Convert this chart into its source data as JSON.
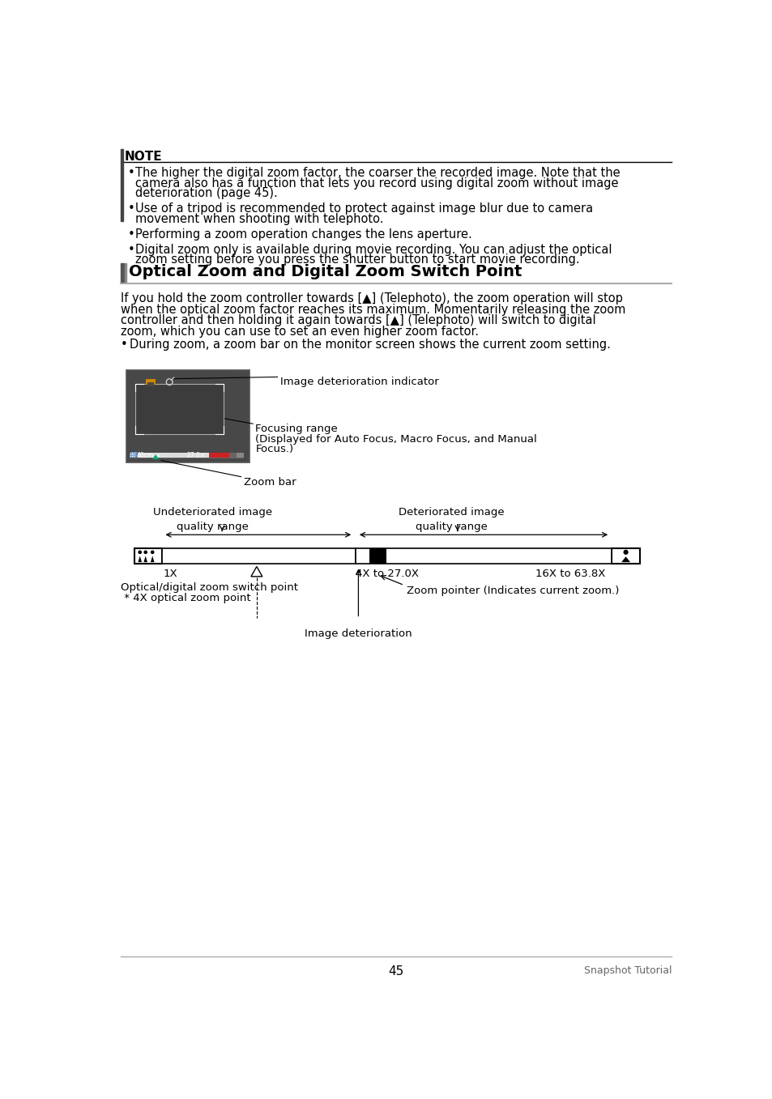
{
  "page_bg": "#ffffff",
  "note_bar_color": "#555555",
  "note_title": "NOTE",
  "note_bullets": [
    "The higher the digital zoom factor, the coarser the recorded image. Note that the camera also has a function that lets you record using digital zoom without image deterioration (page 45).",
    "Use of a tripod is recommended to protect against image blur due to camera movement when shooting with telephoto.",
    "Performing a zoom operation changes the lens aperture.",
    "Digital zoom only is available during movie recording. You can adjust the optical zoom setting before you press the shutter button to start movie recording."
  ],
  "section_title": "Optical Zoom and Digital Zoom Switch Point",
  "body_lines": [
    "If you hold the zoom controller towards [▲] (Telephoto), the zoom operation will stop",
    "when the optical zoom factor reaches its maximum. Momentarily releasing the zoom",
    "controller and then holding it again towards [▲] (Telephoto) will switch to digital",
    "zoom, which you can use to set an even higher zoom factor."
  ],
  "bullet_text": "During zoom, a zoom bar on the monitor screen shows the current zoom setting.",
  "img_det_label": "Image deterioration indicator",
  "focusing_range_lines": [
    "Focusing range",
    "(Displayed for Auto Focus, Macro Focus, and Manual",
    "Focus.)"
  ],
  "zoom_bar_label": "Zoom bar",
  "undeteriorated_label": "Undeteriorated image\nquality range",
  "deteriorated_label": "Deteriorated image\nquality range",
  "zoom_1x": "1X",
  "zoom_4x": "4X to 27.0X",
  "zoom_16x": "16X to 63.8X",
  "switch_line1": "Optical/digital zoom switch point",
  "switch_line2": " * 4X optical zoom point",
  "zoom_pointer_label": "Zoom pointer (Indicates current zoom.)",
  "img_det_label2": "Image deterioration",
  "footer_page": "45",
  "footer_right": "Snapshot Tutorial"
}
